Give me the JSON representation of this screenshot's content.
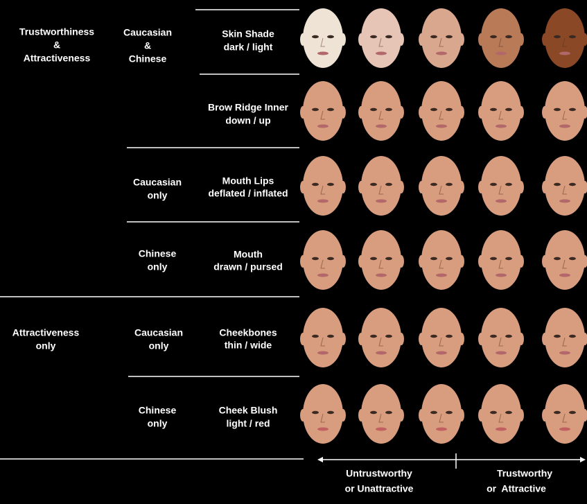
{
  "groups": [
    [
      "Trustworthiness",
      "&",
      "Attractiveness"
    ],
    [
      "Attractiveness",
      "only"
    ]
  ],
  "subgroups": [
    [
      "Caucasian",
      "&",
      "Chinese"
    ],
    [
      "Caucasian",
      "only"
    ],
    [
      "Chinese",
      "only"
    ],
    [
      "Caucasian",
      "only"
    ],
    [
      "Chinese",
      "only"
    ]
  ],
  "features": [
    [
      "Skin Shade",
      "dark / light"
    ],
    [
      "Brow Ridge Inner",
      "down / up"
    ],
    [
      "Mouth Lips",
      "deflated / inflated"
    ],
    [
      "Mouth",
      "drawn / pursed"
    ],
    [
      "Cheekbones",
      "thin / wide"
    ],
    [
      "Cheek Blush",
      "light / red"
    ]
  ],
  "axis": {
    "left": [
      "Untrustworthy",
      "or Unattractive"
    ],
    "right": [
      "Trustworthy",
      "or  Attractive"
    ]
  }
}
